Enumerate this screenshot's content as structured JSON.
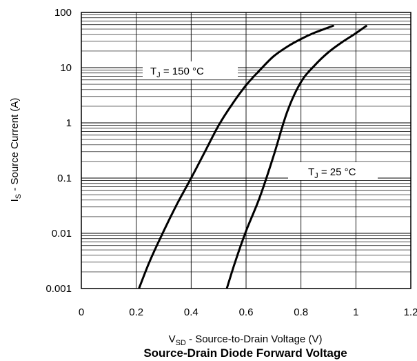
{
  "chart_data": {
    "type": "line",
    "title": "Source-Drain Diode Forward Voltage",
    "xlabel": {
      "main": "V",
      "sub": "SD",
      "rest": " - Source-to-Drain Voltage (V)"
    },
    "ylabel": {
      "main": "I",
      "sub": "S",
      "rest": " - Source Current (A)"
    },
    "x_scale": "linear",
    "y_scale": "log",
    "xlim": [
      0,
      1.2
    ],
    "ylim": [
      0.001,
      100
    ],
    "x_ticks": [
      "0",
      "0.2",
      "0.4",
      "0.6",
      "0.8",
      "1",
      "1.2"
    ],
    "y_ticks": [
      "0.001",
      "0.01",
      "0.1",
      "1",
      "10",
      "100"
    ],
    "grid": true,
    "line_color": "#000000",
    "series": [
      {
        "name": {
          "main": "T",
          "sub": "J",
          "rest": " = 150 °C"
        },
        "x": [
          0.21,
          0.25,
          0.3,
          0.35,
          0.4,
          0.45,
          0.5,
          0.55,
          0.6,
          0.65,
          0.7,
          0.75,
          0.8,
          0.85,
          0.92
        ],
        "y": [
          0.001,
          0.0032,
          0.011,
          0.035,
          0.1,
          0.3,
          0.9,
          2.2,
          4.8,
          9.0,
          16.0,
          24.0,
          33.0,
          43.0,
          58.0
        ]
      },
      {
        "name": {
          "main": "T",
          "sub": "J",
          "rest": " = 25 °C"
        },
        "x": [
          0.53,
          0.56,
          0.6,
          0.65,
          0.7,
          0.75,
          0.8,
          0.85,
          0.9,
          0.95,
          1.0,
          1.04
        ],
        "y": [
          0.001,
          0.003,
          0.011,
          0.045,
          0.25,
          1.6,
          5.5,
          11.0,
          19.0,
          29.0,
          42.0,
          58.0
        ]
      }
    ]
  }
}
